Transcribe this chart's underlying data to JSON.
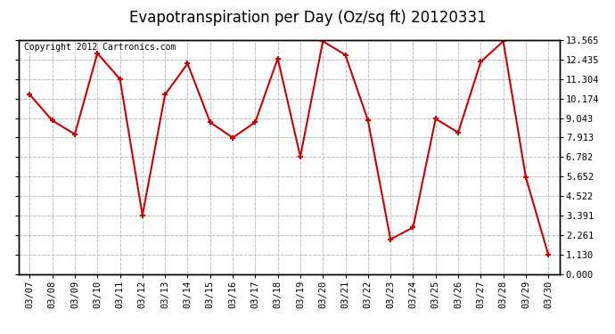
{
  "title": "Evapotranspiration per Day (Oz/sq ft) 20120331",
  "copyright_text": "Copyright 2012 Cartronics.com",
  "dates": [
    "03/07",
    "03/08",
    "03/09",
    "03/10",
    "03/11",
    "03/12",
    "03/13",
    "03/14",
    "03/15",
    "03/16",
    "03/17",
    "03/18",
    "03/19",
    "03/20",
    "03/21",
    "03/22",
    "03/23",
    "03/24",
    "03/25",
    "03/26",
    "03/27",
    "03/28",
    "03/29",
    "03/30"
  ],
  "values": [
    10.4,
    8.9,
    8.1,
    12.8,
    11.3,
    3.4,
    10.4,
    12.2,
    8.8,
    7.9,
    8.8,
    12.5,
    6.8,
    13.5,
    12.7,
    8.9,
    2.0,
    2.7,
    9.0,
    8.2,
    12.3,
    13.5,
    5.6,
    1.1
  ],
  "line_color": "#cc0000",
  "marker": "+",
  "marker_color": "#cc0000",
  "background_color": "#ffffff",
  "plot_bg_color": "#ffffff",
  "grid_color": "#bbbbbb",
  "yticks": [
    0.0,
    1.13,
    2.261,
    3.391,
    4.522,
    5.652,
    6.782,
    7.913,
    9.043,
    10.174,
    11.304,
    12.435,
    13.565
  ],
  "ylim": [
    0.0,
    13.565
  ],
  "title_fontsize": 12,
  "copyright_fontsize": 7,
  "tick_fontsize": 7.5
}
